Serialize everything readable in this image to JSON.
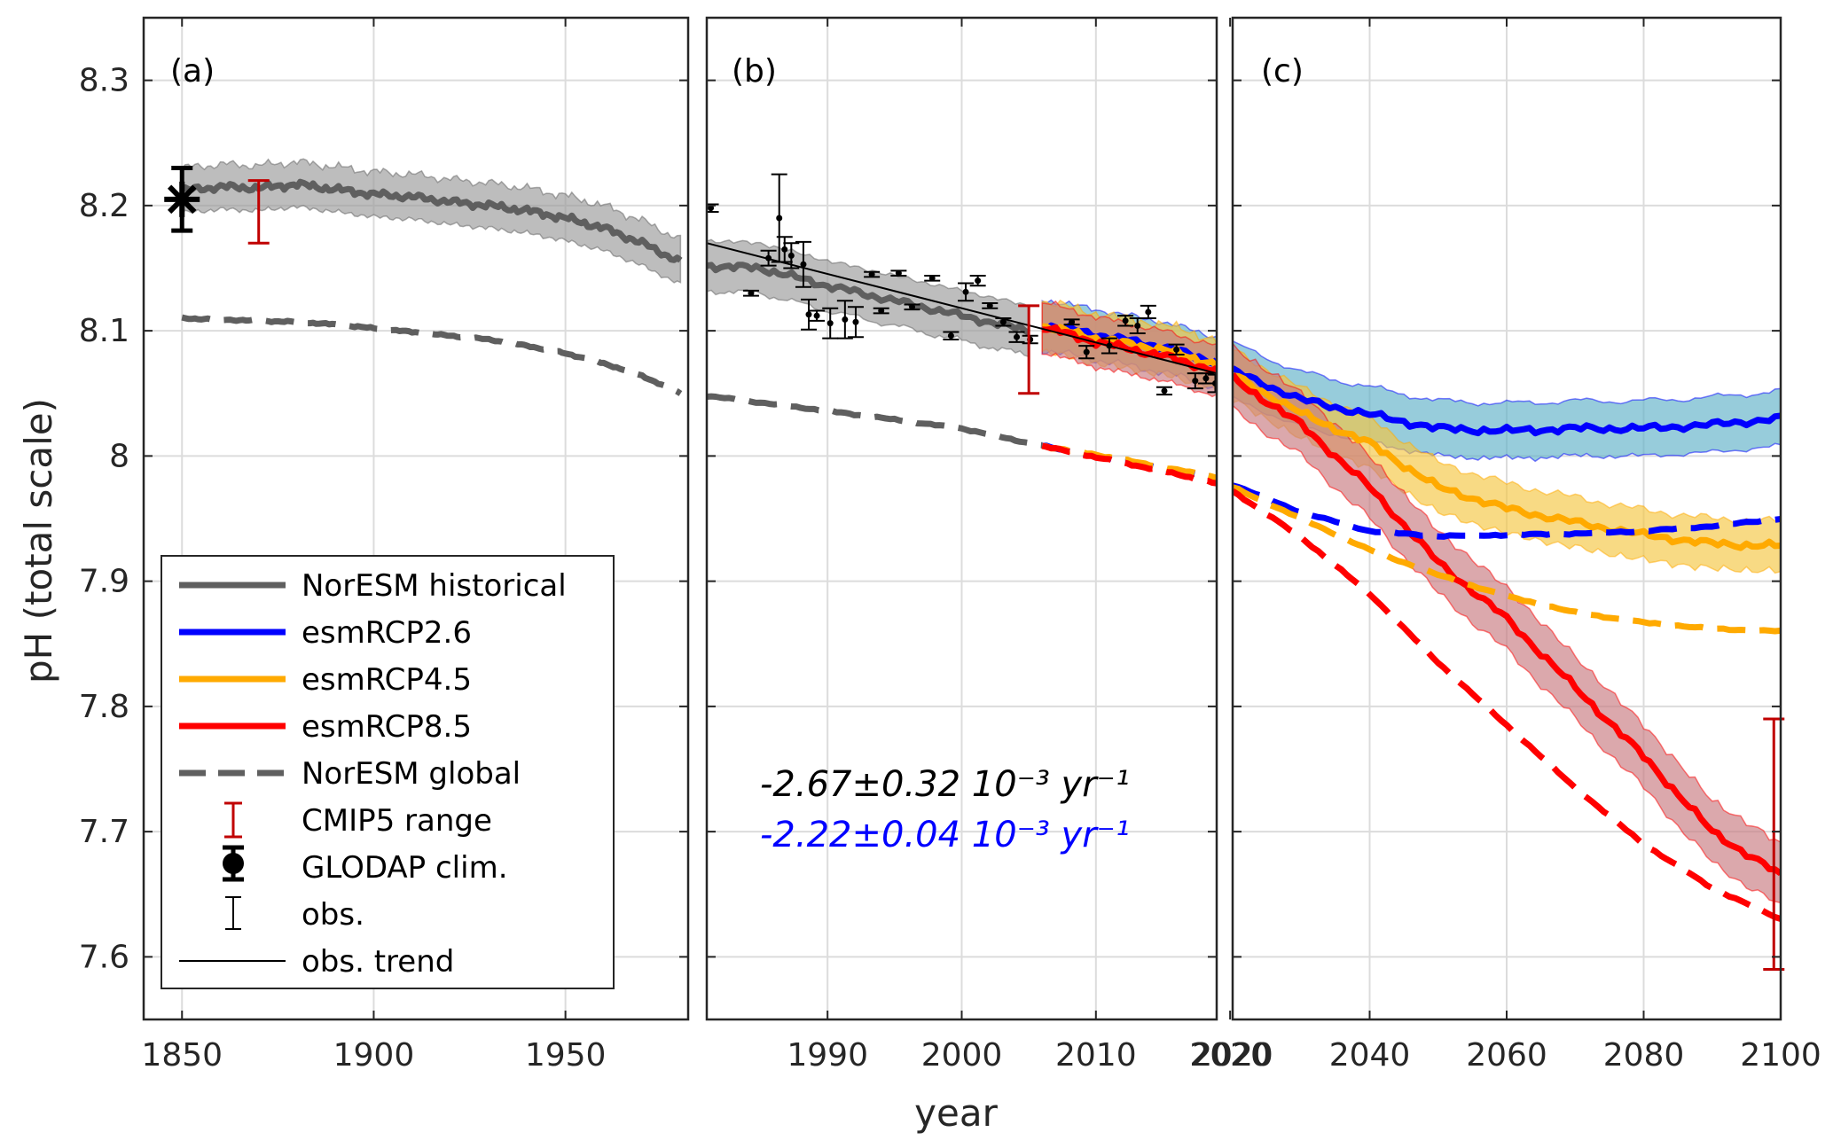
{
  "colors": {
    "historical": "#5f5f5f",
    "historical_band": "#9a9a9a",
    "rcp26": "#0000ff",
    "rcp26_band": "#5fb0c8",
    "rcp45": "#ffaa00",
    "rcp45_band": "#f5c642",
    "rcp85": "#ff0000",
    "rcp85_band": "#c77a80",
    "global": "#5f5f5f",
    "cmip5": "#c00000",
    "obs": "#000000",
    "grid": "#dcdcdc"
  },
  "legend": {
    "historical": "NorESM historical",
    "rcp26": "esmRCP2.6",
    "rcp45": "esmRCP4.5",
    "rcp85": "esmRCP8.5",
    "global": "NorESM global",
    "cmip5": "CMIP5 range",
    "glodap": "GLODAP clim.",
    "obs": "obs.",
    "trend": "obs. trend"
  },
  "chart_data": {
    "type": "line",
    "ylabel": "pH (total scale)",
    "xlabel": "year",
    "ylim": [
      7.55,
      8.35
    ],
    "yticks": [
      "8.3",
      "8.2",
      "8.1",
      "8",
      "7.9",
      "7.8",
      "7.7",
      "7.6"
    ],
    "grid": true,
    "legend_position": "bottom-left of panel (a)",
    "panels": [
      {
        "label": "(a)",
        "xlim": [
          1840,
          1982
        ],
        "xticks": [
          "1850",
          "1900",
          "1950"
        ],
        "series": [
          {
            "name": "NorESM historical",
            "x": [
              1850,
              1860,
              1870,
              1880,
              1890,
              1900,
              1910,
              1920,
              1930,
              1940,
              1950,
              1960,
              1970,
              1980
            ],
            "y": [
              8.212,
              8.215,
              8.214,
              8.217,
              8.213,
              8.209,
              8.207,
              8.203,
              8.2,
              8.196,
              8.19,
              8.182,
              8.17,
              8.155
            ],
            "band_halfwidth": 0.018
          },
          {
            "name": "NorESM global",
            "x": [
              1850,
              1860,
              1870,
              1880,
              1890,
              1900,
              1910,
              1920,
              1930,
              1940,
              1950,
              1960,
              1970,
              1980
            ],
            "y": [
              8.11,
              8.109,
              8.108,
              8.107,
              8.105,
              8.102,
              8.099,
              8.096,
              8.093,
              8.088,
              8.082,
              8.074,
              8.064,
              8.05
            ]
          }
        ],
        "cmip5_range": {
          "x": 1870,
          "low": 8.17,
          "high": 8.22
        },
        "glodap": {
          "x": 1850,
          "y": 8.205,
          "err": 0.025
        }
      },
      {
        "label": "(b)",
        "xlim": [
          1981,
          2019
        ],
        "xticks": [
          "1990",
          "2000",
          "2010",
          "2020"
        ],
        "series": [
          {
            "name": "NorESM historical",
            "x": [
              1981,
              1985,
              1990,
              1995,
              2000,
              2005
            ],
            "y": [
              8.152,
              8.15,
              8.136,
              8.124,
              8.112,
              8.1
            ],
            "band_halfwidth": 0.02
          },
          {
            "name": "esmRCP2.6",
            "x": [
              2006,
              2010,
              2015,
              2019
            ],
            "y": [
              8.105,
              8.097,
              8.087,
              8.075
            ],
            "band_halfwidth": 0.02
          },
          {
            "name": "esmRCP4.5",
            "x": [
              2006,
              2010,
              2015,
              2019
            ],
            "y": [
              8.104,
              8.094,
              8.085,
              8.073
            ],
            "band_halfwidth": 0.02
          },
          {
            "name": "esmRCP8.5",
            "x": [
              2006,
              2010,
              2015,
              2019
            ],
            "y": [
              8.103,
              8.091,
              8.08,
              8.068
            ],
            "band_halfwidth": 0.02
          },
          {
            "name": "NorESM global (historical)",
            "x": [
              1981,
              1990,
              2000,
              2006
            ],
            "y": [
              8.048,
              8.036,
              8.022,
              8.008
            ]
          },
          {
            "name": "NorESM global (RCP2.6)",
            "x": [
              2006,
              2010,
              2015,
              2019
            ],
            "y": [
              8.008,
              8.0,
              7.99,
              7.982
            ]
          },
          {
            "name": "NorESM global (RCP4.5)",
            "x": [
              2006,
              2010,
              2015,
              2019
            ],
            "y": [
              8.008,
              8.001,
              7.991,
              7.983
            ]
          },
          {
            "name": "NorESM global (RCP8.5)",
            "x": [
              2006,
              2010,
              2015,
              2019
            ],
            "y": [
              8.008,
              7.999,
              7.988,
              7.978
            ]
          }
        ],
        "observations": {
          "x": [
            1981.3,
            1984.3,
            1985.6,
            1986.4,
            1986.8,
            1987.3,
            1988.2,
            1988.6,
            1989.2,
            1990.2,
            1991.3,
            1992.1,
            1993.3,
            1994.0,
            1995.3,
            1996.3,
            1997.8,
            1999.2,
            2000.3,
            2001.2,
            2002.1,
            2003.1,
            2004.1,
            2005.1,
            2008.2,
            2009.3,
            2011.0,
            2012.2,
            2013.1,
            2013.9,
            2015.1,
            2016.0,
            2017.4,
            2018.2,
            2018.9
          ],
          "y": [
            8.198,
            8.13,
            8.158,
            8.19,
            8.165,
            8.16,
            8.153,
            8.113,
            8.112,
            8.106,
            8.109,
            8.107,
            8.145,
            8.116,
            8.146,
            8.119,
            8.142,
            8.096,
            8.131,
            8.14,
            8.12,
            8.107,
            8.095,
            8.093,
            8.107,
            8.083,
            8.088,
            8.108,
            8.104,
            8.115,
            8.052,
            8.085,
            8.06,
            8.062,
            8.058
          ],
          "err": [
            0.003,
            0.002,
            0.006,
            0.035,
            0.01,
            0.01,
            0.018,
            0.012,
            0.004,
            0.012,
            0.015,
            0.012,
            0.002,
            0.002,
            0.002,
            0.002,
            0.002,
            0.003,
            0.007,
            0.004,
            0.002,
            0.003,
            0.004,
            0.003,
            0.002,
            0.005,
            0.006,
            0.004,
            0.006,
            0.005,
            0.003,
            0.004,
            0.006,
            0.004,
            0.007
          ]
        },
        "obs_trend": {
          "x": [
            1981,
            2019
          ],
          "y": [
            8.17,
            8.066
          ]
        },
        "cmip5_range": {
          "x": 2005,
          "low": 8.05,
          "high": 8.12
        },
        "annotations": [
          {
            "text": "-2.67±0.32 10⁻³ yr⁻¹",
            "color": "#000000"
          },
          {
            "text": "-2.22±0.04 10⁻³ yr⁻¹",
            "color": "#0000ff"
          }
        ]
      },
      {
        "label": "(c)",
        "xlim": [
          2020,
          2100
        ],
        "xticks": [
          "2020",
          "2040",
          "2060",
          "2080",
          "2100"
        ],
        "series": [
          {
            "name": "esmRCP2.6",
            "x": [
              2020,
              2030,
              2040,
              2050,
              2060,
              2070,
              2080,
              2090,
              2100
            ],
            "y": [
              8.068,
              8.045,
              8.033,
              8.022,
              8.02,
              8.022,
              8.022,
              8.025,
              8.03
            ],
            "band_halfwidth": 0.022
          },
          {
            "name": "esmRCP4.5",
            "x": [
              2020,
              2030,
              2040,
              2050,
              2060,
              2070,
              2080,
              2090,
              2100
            ],
            "y": [
              8.065,
              8.034,
              8.01,
              7.975,
              7.958,
              7.947,
              7.937,
              7.93,
              7.928
            ],
            "band_halfwidth": 0.02
          },
          {
            "name": "esmRCP8.5",
            "x": [
              2020,
              2030,
              2040,
              2050,
              2060,
              2070,
              2080,
              2090,
              2100
            ],
            "y": [
              8.062,
              8.025,
              7.975,
              7.915,
              7.87,
              7.815,
              7.76,
              7.7,
              7.665
            ],
            "band_halfwidth": 0.025
          },
          {
            "name": "NorESM global (RCP2.6)",
            "x": [
              2020,
              2030,
              2040,
              2050,
              2060,
              2070,
              2080,
              2090,
              2100
            ],
            "y": [
              7.977,
              7.955,
              7.94,
              7.936,
              7.937,
              7.938,
              7.94,
              7.944,
              7.95
            ]
          },
          {
            "name": "NorESM global (RCP4.5)",
            "x": [
              2020,
              2030,
              2040,
              2050,
              2060,
              2070,
              2080,
              2090,
              2100
            ],
            "y": [
              7.975,
              7.95,
              7.925,
              7.905,
              7.888,
              7.875,
              7.867,
              7.862,
              7.86
            ]
          },
          {
            "name": "NorESM global (RCP8.5)",
            "x": [
              2020,
              2030,
              2040,
              2050,
              2060,
              2070,
              2080,
              2090,
              2100
            ],
            "y": [
              7.972,
              7.935,
              7.89,
              7.835,
              7.785,
              7.735,
              7.69,
              7.655,
              7.63
            ]
          }
        ],
        "cmip5_range": {
          "x": 2099,
          "low": 7.59,
          "high": 7.79
        }
      }
    ]
  }
}
